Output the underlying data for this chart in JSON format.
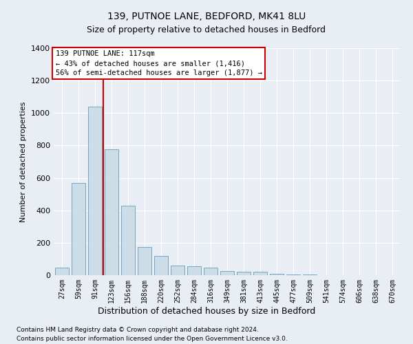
{
  "title1": "139, PUTNOE LANE, BEDFORD, MK41 8LU",
  "title2": "Size of property relative to detached houses in Bedford",
  "xlabel": "Distribution of detached houses by size in Bedford",
  "ylabel": "Number of detached properties",
  "categories": [
    "27sqm",
    "59sqm",
    "91sqm",
    "123sqm",
    "156sqm",
    "188sqm",
    "220sqm",
    "252sqm",
    "284sqm",
    "316sqm",
    "349sqm",
    "381sqm",
    "413sqm",
    "445sqm",
    "477sqm",
    "509sqm",
    "541sqm",
    "574sqm",
    "606sqm",
    "638sqm",
    "670sqm"
  ],
  "values": [
    45,
    570,
    1040,
    775,
    430,
    175,
    120,
    60,
    55,
    45,
    25,
    20,
    20,
    10,
    5,
    5,
    2,
    0,
    0,
    0,
    0
  ],
  "bar_color": "#ccdde8",
  "bar_edge_color": "#6699bb",
  "vline_color": "#cc0000",
  "vline_pos": 2.5,
  "annotation_text": "139 PUTNOE LANE: 117sqm\n← 43% of detached houses are smaller (1,416)\n56% of semi-detached houses are larger (1,877) →",
  "annotation_box_color": "#ffffff",
  "annotation_box_edge_color": "#cc0000",
  "ylim": [
    0,
    1400
  ],
  "yticks": [
    0,
    200,
    400,
    600,
    800,
    1000,
    1200,
    1400
  ],
  "footnote1": "Contains HM Land Registry data © Crown copyright and database right 2024.",
  "footnote2": "Contains public sector information licensed under the Open Government Licence v3.0.",
  "bg_color": "#e8eef4",
  "plot_bg_color": "#e8eef4",
  "grid_color": "#ffffff",
  "title1_fontsize": 10,
  "title2_fontsize": 9,
  "ylabel_fontsize": 8,
  "xlabel_fontsize": 9,
  "ytick_fontsize": 8,
  "xtick_fontsize": 7,
  "footnote_fontsize": 6.5
}
